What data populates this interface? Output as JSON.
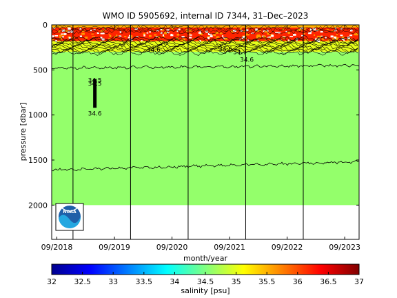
{
  "chart_data": {
    "type": "heatmap",
    "title": "WMO ID 5905692, internal ID 7344, 31–Dec–2023",
    "xlabel": "month/year",
    "ylabel": "pressure [dbar]",
    "x_tick_labels": [
      "09/2018",
      "09/2019",
      "09/2020",
      "09/2021",
      "09/2022",
      "09/2023"
    ],
    "x_ticks_years": [
      2018.67,
      2019.67,
      2020.67,
      2021.67,
      2022.67,
      2023.67
    ],
    "xlim_years": [
      2018.58,
      2023.92
    ],
    "ylim": [
      2380,
      0
    ],
    "y_ticks": [
      0,
      500,
      1000,
      1500,
      2000
    ],
    "vertical_lines_years": [
      2018.95,
      2019.95,
      2020.95,
      2021.95,
      2022.95
    ],
    "data_extent_years": [
      2018.58,
      2023.92
    ],
    "data_max_pressure": 2000,
    "layers": [
      {
        "p_top": 0,
        "p_bottom": 30,
        "salinity": 35.5
      },
      {
        "p_top": 30,
        "p_bottom": 180,
        "salinity": 36.2
      },
      {
        "p_top": 180,
        "p_bottom": 300,
        "salinity": 35.0
      },
      {
        "p_top": 300,
        "p_bottom": 2000,
        "salinity": 34.6
      }
    ],
    "contours": [
      {
        "label": "34.6",
        "mean_pressure": 480
      },
      {
        "label": "34.6",
        "mean_pressure": 1610
      }
    ],
    "contour_labels": [
      "34.6",
      "34.6",
      "34.7",
      "34.6",
      "34.6",
      "34.5",
      "34.5"
    ],
    "colorbar": {
      "label": "salinity [psu]",
      "range": [
        32,
        37
      ],
      "ticks": [
        "32",
        "32.5",
        "33",
        "33.5",
        "34",
        "34.5",
        "35",
        "35.5",
        "36",
        "36.5",
        "37"
      ]
    },
    "logo": "noaa-logo"
  }
}
